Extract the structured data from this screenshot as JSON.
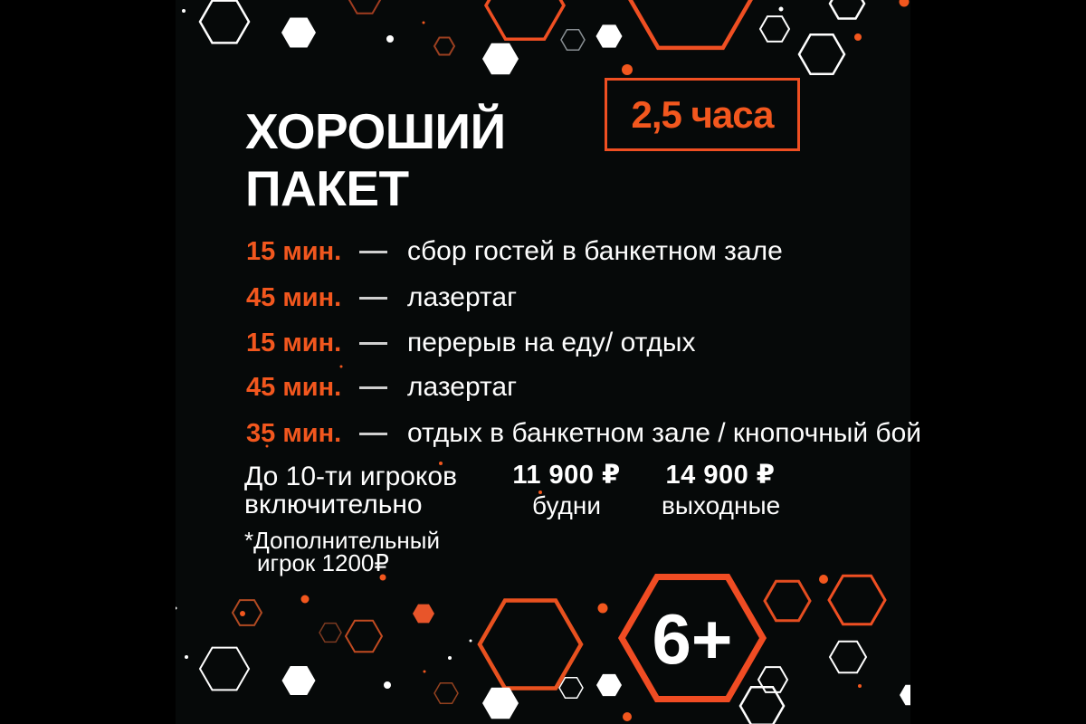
{
  "poster": {
    "title": {
      "line1": "ХОРОШИЙ",
      "line2": "ПАКЕТ"
    },
    "duration_badge": "2,5 часа",
    "schedule": [
      {
        "time": "15 мин.",
        "activity": "сбор гостей в банкетном зале"
      },
      {
        "time": "45 мин.",
        "activity": "лазертаг"
      },
      {
        "time": "15 мин.",
        "activity": "перерыв на еду/ отдых"
      },
      {
        "time": "45 мин.",
        "activity": "лазертаг"
      },
      {
        "time": "35 мин.",
        "activity": "отдых в банкетном зале / кнопочный бой"
      }
    ],
    "capacity": {
      "line1": "До 10-ти игроков",
      "line2": "включительно"
    },
    "prices": [
      {
        "amount": "11 900 ₽",
        "label": "будни"
      },
      {
        "amount": "14 900 ₽",
        "label": "выходные"
      }
    ],
    "note": {
      "line1": "*Дополнительный",
      "line2": "игрок 1200₽"
    },
    "age_badge": "6+",
    "colors": {
      "background": "#000000",
      "panel": "#060909",
      "accent_orange": "#f2571e",
      "hexagon_orange": "#ef4f22",
      "white": "#ffffff"
    }
  }
}
